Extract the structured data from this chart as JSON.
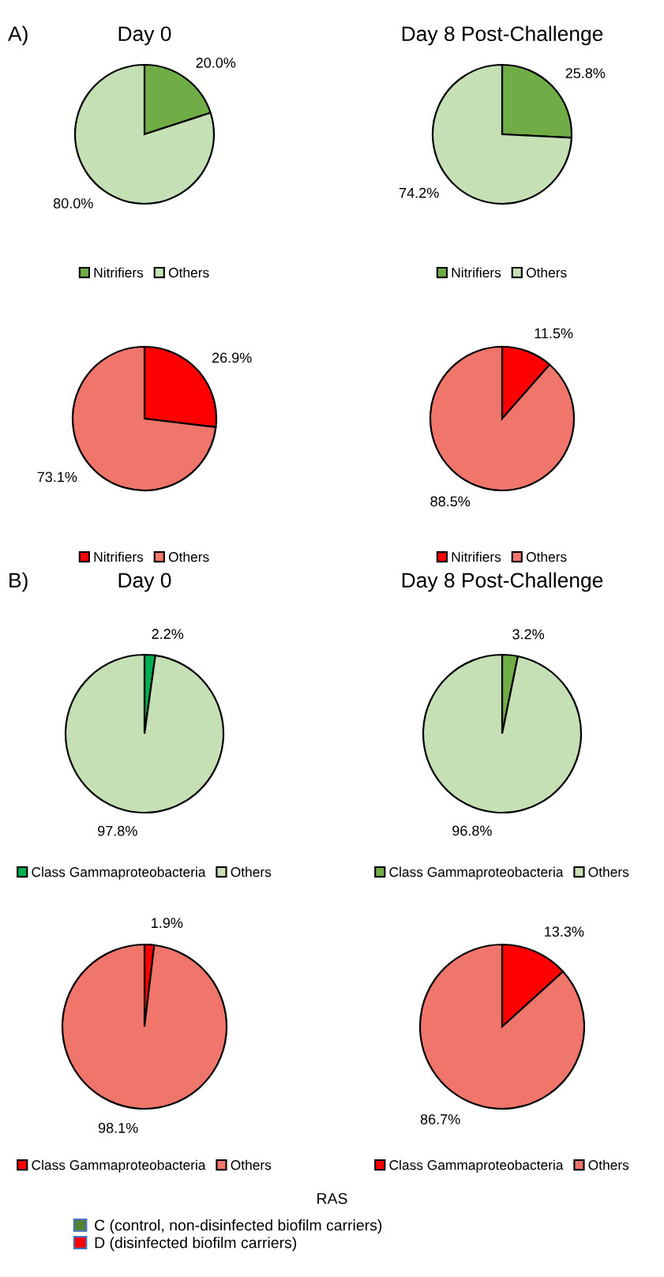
{
  "chart_data": [
    {
      "type": "pie",
      "title": "Day 0",
      "annotations": [
        "A)"
      ],
      "categories": [
        "Nitrifiers",
        "Others"
      ],
      "values": [
        20.0,
        80.0
      ],
      "colors": [
        "#70ad47",
        "#c5e0b4"
      ],
      "value_labels": [
        "20.0%",
        "80.0%"
      ],
      "legend": "bottom"
    },
    {
      "type": "pie",
      "title": "Day 8 Post-Challenge",
      "categories": [
        "Nitrifiers",
        "Others"
      ],
      "values": [
        25.8,
        74.2
      ],
      "colors": [
        "#70ad47",
        "#c5e0b4"
      ],
      "value_labels": [
        "25.8%",
        "74.2%"
      ],
      "legend": "bottom"
    },
    {
      "type": "pie",
      "categories": [
        "Nitrifiers",
        "Others"
      ],
      "values": [
        26.9,
        73.1
      ],
      "colors": [
        "#ff0000",
        "#f0766b"
      ],
      "value_labels": [
        "26.9%",
        "73.1%"
      ],
      "legend": "bottom"
    },
    {
      "type": "pie",
      "categories": [
        "Nitrifiers",
        "Others"
      ],
      "values": [
        11.5,
        88.5
      ],
      "colors": [
        "#ff0000",
        "#f0766b"
      ],
      "value_labels": [
        "11.5%",
        "88.5%"
      ],
      "legend": "bottom"
    },
    {
      "type": "pie",
      "title": "Day 0",
      "annotations": [
        "B)"
      ],
      "categories": [
        "Class Gammaproteobacteria",
        "Others"
      ],
      "values": [
        2.2,
        97.8
      ],
      "colors": [
        "#00b050",
        "#c5e0b4"
      ],
      "value_labels": [
        "2.2%",
        "97.8%"
      ],
      "legend": "bottom"
    },
    {
      "type": "pie",
      "title": "Day 8 Post-Challenge",
      "categories": [
        "Class Gammaproteobacteria",
        "Others"
      ],
      "values": [
        3.2,
        96.8
      ],
      "colors": [
        "#70ad47",
        "#c5e0b4"
      ],
      "value_labels": [
        "3.2%",
        "96.8%"
      ],
      "legend": "bottom"
    },
    {
      "type": "pie",
      "categories": [
        "Class Gammaproteobacteria",
        "Others"
      ],
      "values": [
        1.9,
        98.1
      ],
      "colors": [
        "#ff0000",
        "#f0766b"
      ],
      "value_labels": [
        "1.9%",
        "98.1%"
      ],
      "legend": "bottom"
    },
    {
      "type": "pie",
      "categories": [
        "Class Gammaproteobacteria",
        "Others"
      ],
      "values": [
        13.3,
        86.7
      ],
      "colors": [
        "#ff0000",
        "#f0766b"
      ],
      "value_labels": [
        "13.3%",
        "86.7%"
      ],
      "legend": "bottom"
    },
    {
      "type": "other",
      "title": "RAS",
      "categories": [
        "C (control, non-disinfected biofilm carriers)",
        "D (disinfected biofilm carriers)"
      ],
      "colors": [
        "#548235",
        "#ff0000"
      ]
    }
  ]
}
